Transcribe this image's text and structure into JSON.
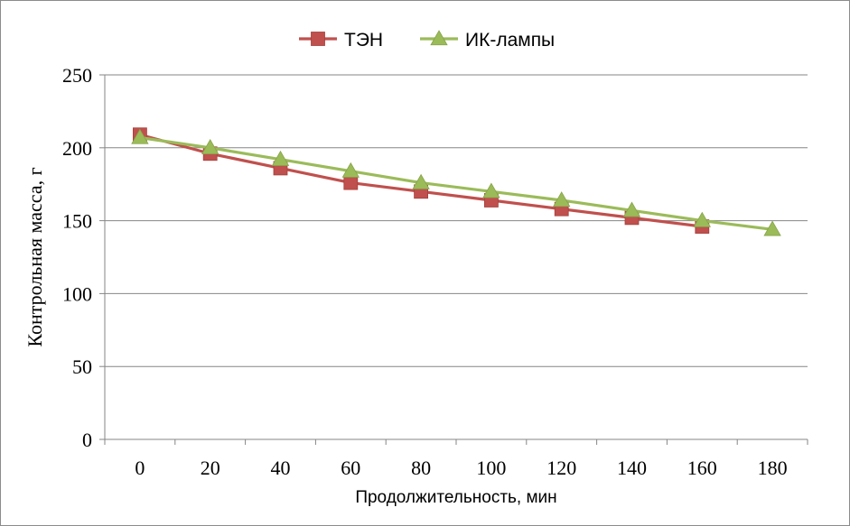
{
  "chart_data": {
    "type": "line",
    "xlabel": "Продолжительность, мин",
    "ylabel": "Контрольная масса, г",
    "categories": [
      0,
      20,
      40,
      60,
      80,
      100,
      120,
      140,
      160,
      180
    ],
    "ylim": [
      0,
      250
    ],
    "yticks": [
      0,
      50,
      100,
      150,
      200,
      250
    ],
    "grid": true,
    "legend_position": "top-center",
    "series": [
      {
        "name": "ТЭН",
        "color": "#c0504d",
        "marker": "square",
        "values": [
          209,
          196,
          186,
          176,
          170,
          164,
          158,
          152,
          146,
          null
        ]
      },
      {
        "name": "ИК-лампы",
        "color": "#9bbb59",
        "marker": "triangle",
        "values": [
          207,
          200,
          192,
          184,
          176,
          170,
          164,
          157,
          150,
          144
        ]
      }
    ]
  }
}
